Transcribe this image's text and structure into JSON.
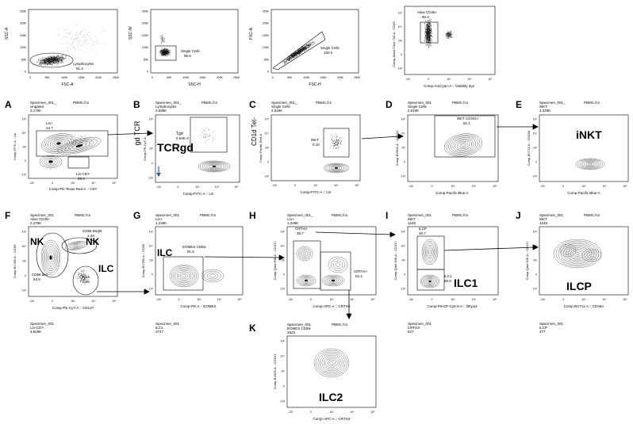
{
  "top_row": [
    {
      "id": "t1",
      "ylabel": "SSC-A",
      "xlabel": "FSC-A",
      "yticks": [
        "250K",
        "200K",
        "150K",
        "100K",
        "50K",
        "0"
      ],
      "xticks": [
        "0",
        "50K",
        "100K",
        "150K",
        "200K",
        "250K"
      ],
      "gates": [
        {
          "name": "Lymphocytes",
          "value": "81.3"
        }
      ]
    },
    {
      "id": "t2",
      "ylabel": "SSC-W",
      "xlabel": "SSC-H",
      "yticks": [
        "250K",
        "200K",
        "150K",
        "100K",
        "50K",
        "0"
      ],
      "xticks": [
        "0",
        "50K",
        "100K",
        "150K",
        "200K",
        "250K"
      ],
      "gates": [
        {
          "name": "Single Cells",
          "value": "96.9"
        }
      ]
    },
    {
      "id": "t3",
      "ylabel": "FSC-A",
      "xlabel": "FSC-H",
      "yticks": [
        "250K",
        "200K",
        "150K",
        "100K",
        "50K",
        "0"
      ],
      "xticks": [
        "0",
        "50K",
        "100K",
        "150K",
        "200K",
        "250K"
      ],
      "gates": [
        {
          "name": "Single Cells",
          "value": "100.0"
        }
      ]
    },
    {
      "id": "t4",
      "ylabel": "Comp-Alexa Fluor 700-A : CD45",
      "xlabel": "Comp-AmCyan-A :: Viability dye",
      "yticks": [
        "10^5",
        "10^4",
        "10^3",
        "0",
        "-10^3"
      ],
      "xticks": [
        "-10^3",
        "0",
        "10^3",
        "10^4",
        "10^5"
      ],
      "gates": [
        {
          "name": "Alive CD45+",
          "value": "90.4"
        }
      ]
    }
  ],
  "panels": [
    {
      "id": "A",
      "letter": "A",
      "header": [
        "Specimen_001_",
        "Ungated",
        "3,176K"
      ],
      "file": "PBMC.fcs",
      "ylabel": "Comp-FITC-A :: Lin",
      "xlabel": "Comp-PE-Texas Red-A :: CD7",
      "gates": [
        {
          "name": "Lin+",
          "value": "14.7"
        },
        {
          "name": "Lin-CD7-",
          "value": "20.4"
        }
      ]
    },
    {
      "id": "B",
      "letter": "B",
      "header": [
        "Specimen_001_",
        "Lymphocytes",
        "2,596K"
      ],
      "file": "PBMC.fcs",
      "ylabel": "Comp-PE-Cy7-A",
      "xlabel": "Comp-FITC-A :: Lin",
      "side_label": "gd TCR",
      "big_label": "TCRgd",
      "gates": [
        {
          "name": "Tgd",
          "value": "0.04E-3"
        }
      ]
    },
    {
      "id": "C",
      "letter": "C",
      "header": [
        "Specimen_001_",
        "Single Cells",
        "2,516K"
      ],
      "file": "PBMC.fcs",
      "ylabel": "Comp-Pacific Red-A",
      "xlabel": "Comp-FITC-A :: Lin",
      "side_label": "CD1d Tet-",
      "gates": [
        {
          "name": "iNKT",
          "value": "0.10"
        }
      ]
    },
    {
      "id": "D",
      "letter": "D",
      "header": [
        "Specimen_001",
        "Single Cells",
        "2,510K"
      ],
      "file": "PBMC.fcs",
      "ylabel": "Comp-BV605-A :: CD161",
      "xlabel": "Comp-Pacific Blue-A",
      "gates": [
        {
          "name": "iNKT CD161+",
          "value": "81.4"
        }
      ]
    },
    {
      "id": "E",
      "letter": "E",
      "header": [
        "Specimen_001_",
        "iNKT",
        "2,345K"
      ],
      "file": "PBMC.fcs",
      "ylabel": "Comp-BV711-A :: CD49A",
      "xlabel": "Comp-Pacific Blue-A",
      "big_label": "iNKT",
      "gates": []
    },
    {
      "id": "F",
      "letter": "F",
      "header": [
        "Specimen_001",
        "Alive CD45+",
        "2,276K"
      ],
      "file": "PBMC.fcs",
      "ylabel": "Comp-BV786-A :: CD56",
      "xlabel": "Comp-PE-Cy7-A :: CD127",
      "gates": [
        {
          "name": "CD56 Bright",
          "value": "1.33"
        },
        {
          "name": "CD56 dim",
          "value": "84.8"
        },
        {
          "name": "ILCs",
          "value": "0.16"
        }
      ],
      "big_labels": [
        "NK",
        "NK",
        "ILC"
      ],
      "footer": [
        "Specimen_001",
        "Lin-CD7-",
        "4,826K"
      ]
    },
    {
      "id": "G",
      "letter": "G",
      "header": [
        "Specimen_001",
        "Lin+",
        "1,246K"
      ],
      "file": "PBMC.fcs",
      "ylabel": "Comp-BV786-A :: CD56",
      "xlabel": "Comp-PE-A :: EOMES",
      "big_label": "ILC",
      "gates": [
        {
          "name": "EOMES CD56-",
          "value": "91.8"
        }
      ],
      "footer": [
        "Specimen_001",
        "ILC1",
        "2747"
      ]
    },
    {
      "id": "H",
      "letter": "H",
      "header": [
        "Specimen_001_",
        "Lin+",
        "1,246K"
      ],
      "file": "PBMC.fcs",
      "ylabel": "Comp-Qdot 605-A :: CD117",
      "xlabel": "Comp-APC-A :: CRTH2",
      "gates": [
        {
          "name": "CRTH2-",
          "value": "36.7"
        },
        {
          "name": "CRTH2+",
          "value": "62.4"
        }
      ]
    },
    {
      "id": "I",
      "letter": "I",
      "header": [
        "Specimen_001",
        "iNKT",
        "1245"
      ],
      "file": "PBMC.fcs",
      "ylabel": "Comp-Qdot 605-A :: CD117",
      "xlabel": "Comp-PerCP-Cy5-5-A :: NKp44",
      "big_label": "ILC1",
      "gates": [
        {
          "name": "ILCP",
          "value": "40.7"
        },
        {
          "name": "ILC1",
          "value": "58.9"
        }
      ],
      "footer": [
        "Specimen_001",
        "CRTH2-",
        "627"
      ]
    },
    {
      "id": "J",
      "letter": "J",
      "header": [
        "Specimen_001",
        "iNKT",
        "1245"
      ],
      "file": "PBMC.fcs",
      "ylabel": "Comp-Qdot 605-A :: CD117",
      "xlabel": "Comp-BV711-A :: CD49A",
      "big_label": "ILCP",
      "gates": [],
      "footer": [
        "Specimen_001",
        "ILCP",
        "377"
      ]
    },
    {
      "id": "K",
      "letter": "K",
      "header": [
        "Specimen_001",
        "EOMES CD56-",
        "2523"
      ],
      "file": "PBMC.fcs",
      "ylabel": "Comp-BV605-A :: CD161",
      "xlabel": "Comp-APC-A :: CRTH2",
      "big_label": "ILC2",
      "gates": []
    }
  ],
  "log_yticks": [
    "10^5",
    "10^4",
    "10^3",
    "0",
    "-10^3"
  ],
  "log_xticks": [
    "-10^3",
    "0",
    "10^3",
    "10^4",
    "10^5"
  ]
}
